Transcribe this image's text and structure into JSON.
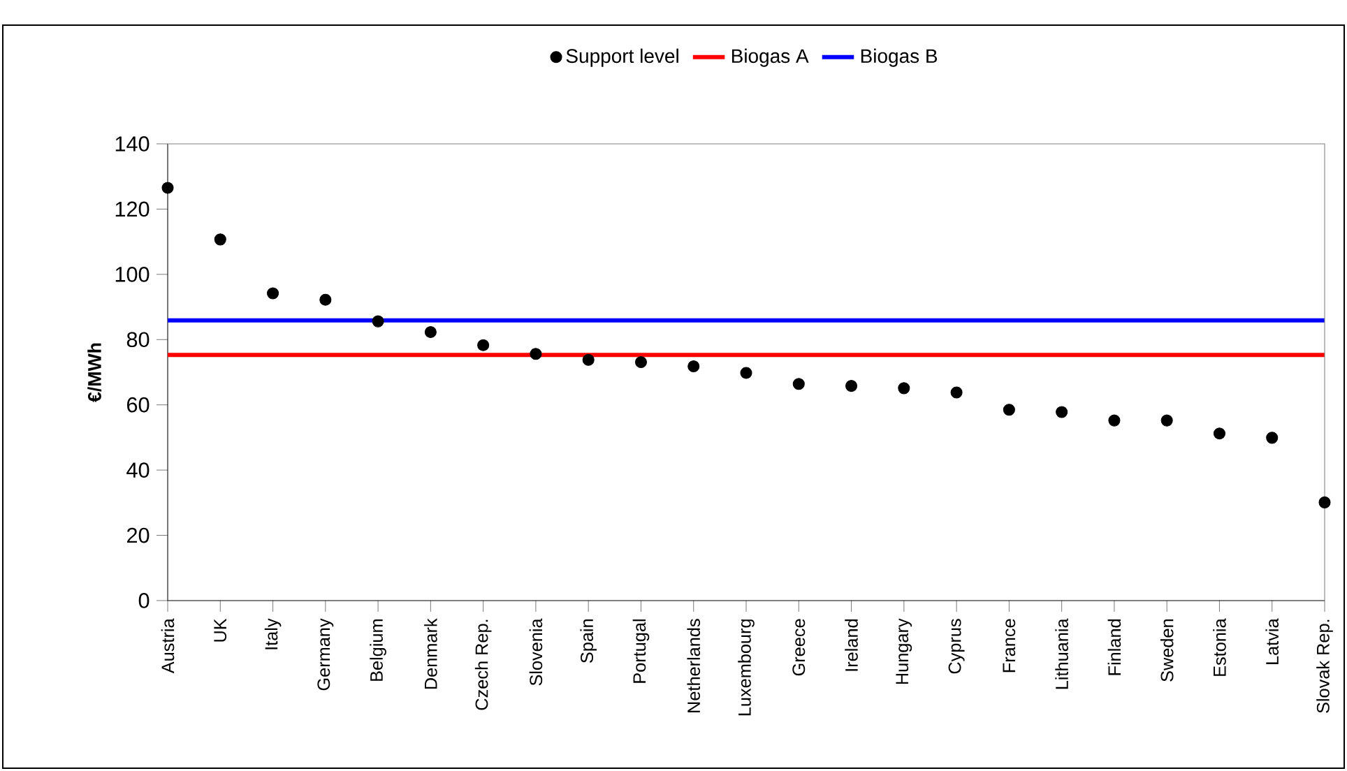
{
  "chart_data": {
    "type": "scatter",
    "ylabel": "€/MWh",
    "categories": [
      "Austria",
      "UK",
      "Italy",
      "Germany",
      "Belgium",
      "Denmark",
      "Czech Rep.",
      "Slovenia",
      "Spain",
      "Portugal",
      "Netherlands",
      "Luxembourg",
      "Greece",
      "Ireland",
      "Hungary",
      "Cyprus",
      "France",
      "Lithuania",
      "Finland",
      "Sweden",
      "Estonia",
      "Latvia",
      "Slovak Rep."
    ],
    "series": [
      {
        "name": "Support level",
        "color": "#000000",
        "values": [
          126.5,
          110.7,
          94.2,
          92.2,
          85.6,
          82.3,
          78.3,
          75.6,
          73.8,
          73.1,
          71.8,
          69.8,
          66.4,
          65.8,
          65.1,
          63.8,
          58.5,
          57.8,
          55.2,
          55.2,
          51.2,
          49.9,
          30.1
        ]
      },
      {
        "name": "Biogas A",
        "type": "line",
        "color": "#ff0000",
        "values": [
          75.3,
          75.3,
          75.3,
          75.3,
          75.3,
          75.3,
          75.3,
          75.3,
          75.3,
          75.3,
          75.3,
          75.3,
          75.3,
          75.3,
          75.3,
          75.3,
          75.3,
          75.3,
          75.3,
          75.3,
          75.3,
          75.3,
          75.3
        ]
      },
      {
        "name": "Biogas B",
        "type": "line",
        "color": "#0000ff",
        "values": [
          85.9,
          85.9,
          85.9,
          85.9,
          85.9,
          85.9,
          85.9,
          85.9,
          85.9,
          85.9,
          85.9,
          85.9,
          85.9,
          85.9,
          85.9,
          85.9,
          85.9,
          85.9,
          85.9,
          85.9,
          85.9,
          85.9,
          85.9
        ]
      }
    ],
    "ylim": [
      0,
      140
    ],
    "yticks": [
      0,
      20,
      40,
      60,
      80,
      100,
      120,
      140
    ],
    "grid": false,
    "legend": "top"
  }
}
